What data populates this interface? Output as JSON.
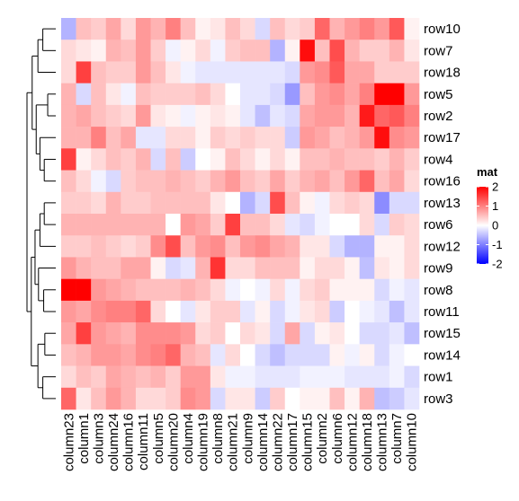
{
  "chart_data": {
    "type": "heatmap",
    "title": "",
    "legend": {
      "title": "mat",
      "placement": "right",
      "breaks": [
        2,
        1,
        0,
        -1,
        -2
      ],
      "break_labels": [
        "2",
        "1",
        "0",
        "-1",
        "-2"
      ],
      "low_color": "#0000ff",
      "mid_color": "#ffffff",
      "high_color": "#ff0000",
      "range": [
        -2,
        2
      ]
    },
    "rows": [
      "row10",
      "row7",
      "row18",
      "row5",
      "row2",
      "row17",
      "row4",
      "row16",
      "row13",
      "row6",
      "row12",
      "row9",
      "row8",
      "row11",
      "row15",
      "row14",
      "row1",
      "row3"
    ],
    "columns": [
      "column23",
      "column1",
      "column3",
      "column24",
      "column16",
      "column11",
      "column5",
      "column20",
      "column4",
      "column19",
      "column8",
      "column21",
      "column9",
      "column14",
      "column22",
      "column17",
      "column15",
      "column2",
      "column6",
      "column12",
      "column18",
      "column13",
      "column7",
      "column10"
    ],
    "values": [
      [
        -0.6,
        0.5,
        0.4,
        0.7,
        0.3,
        0.8,
        0.6,
        1.0,
        0.5,
        0.1,
        0.2,
        0.5,
        0.3,
        -0.3,
        0.5,
        0.3,
        0.4,
        1.2,
        0.6,
        0.8,
        1.0,
        0.8,
        1.3,
        0.1
      ],
      [
        0.3,
        0.2,
        0.1,
        0.6,
        0.5,
        0.8,
        0.4,
        -0.1,
        0.1,
        0.3,
        -0.1,
        0.4,
        0.5,
        0.5,
        -0.6,
        0.1,
        1.9,
        0.5,
        1.4,
        0.6,
        0.4,
        0.4,
        0.6,
        0.2
      ],
      [
        0.3,
        1.5,
        0.5,
        0.4,
        0.4,
        0.8,
        0.5,
        0.2,
        -0.1,
        -0.2,
        -0.2,
        -0.2,
        -0.2,
        -0.2,
        -0.2,
        -0.3,
        0.8,
        0.9,
        1.3,
        0.7,
        0.7,
        0.4,
        0.4,
        0.4
      ],
      [
        0.6,
        -0.3,
        0.5,
        0.2,
        -0.1,
        0.5,
        0.4,
        0.4,
        0.4,
        0.5,
        0.3,
        0.0,
        -0.2,
        -0.2,
        -0.3,
        -0.8,
        0.5,
        0.8,
        0.9,
        0.7,
        1.0,
        2.0,
        2.0,
        0.8
      ],
      [
        0.6,
        0.7,
        0.5,
        0.4,
        0.3,
        0.8,
        0.2,
        0.1,
        -0.1,
        0.1,
        0.2,
        0.1,
        -0.2,
        -0.5,
        -0.2,
        -0.3,
        0.7,
        0.8,
        0.8,
        0.6,
        1.8,
        1.2,
        1.3,
        1.0
      ],
      [
        0.6,
        0.6,
        1.0,
        0.5,
        0.7,
        -0.2,
        -0.2,
        0.3,
        0.3,
        0.1,
        0.4,
        0.3,
        0.4,
        0.3,
        0.3,
        -0.4,
        0.8,
        0.7,
        0.5,
        0.6,
        0.8,
        1.9,
        0.9,
        0.8
      ],
      [
        1.5,
        0.1,
        0.3,
        0.5,
        0.4,
        0.6,
        -0.3,
        0.5,
        -0.4,
        0.0,
        0.1,
        0.5,
        0.3,
        0.1,
        0.3,
        0.1,
        0.5,
        0.5,
        0.6,
        0.5,
        0.5,
        0.4,
        0.6,
        0.4
      ],
      [
        0.5,
        0.3,
        -0.1,
        -0.3,
        0.4,
        0.5,
        0.5,
        0.6,
        0.5,
        0.4,
        0.6,
        0.8,
        0.5,
        0.4,
        0.7,
        0.4,
        0.6,
        0.7,
        0.5,
        0.8,
        1.2,
        0.5,
        0.7,
        0.3
      ],
      [
        0.4,
        0.4,
        0.3,
        0.6,
        0.4,
        0.4,
        0.5,
        0.5,
        0.5,
        0.5,
        0.2,
        0.0,
        -0.6,
        -0.3,
        1.4,
        0.5,
        0.1,
        -0.1,
        0.3,
        0.4,
        0.3,
        -0.9,
        -0.3,
        -0.3
      ],
      [
        0.6,
        0.6,
        0.6,
        0.6,
        0.6,
        0.6,
        0.6,
        0.0,
        0.8,
        0.7,
        0.4,
        1.5,
        0.5,
        0.5,
        0.3,
        -0.2,
        -0.3,
        -0.1,
        0.0,
        0.0,
        0.3,
        -0.3,
        0.4,
        0.3
      ],
      [
        0.4,
        0.4,
        0.5,
        0.4,
        0.3,
        0.4,
        0.9,
        1.4,
        0.5,
        0.8,
        0.9,
        0.5,
        0.8,
        0.9,
        0.7,
        0.6,
        0.2,
        0.2,
        -0.3,
        -0.6,
        -0.6,
        0.1,
        0.1,
        0.3
      ],
      [
        0.8,
        0.6,
        0.5,
        0.5,
        0.7,
        0.7,
        0.1,
        -0.3,
        -0.2,
        0.6,
        1.6,
        0.3,
        0.3,
        0.5,
        0.5,
        0.5,
        0.1,
        0.3,
        0.3,
        0.1,
        -0.5,
        0.2,
        0.1,
        0.3
      ],
      [
        2.0,
        2.0,
        0.8,
        0.7,
        0.6,
        0.5,
        0.5,
        0.5,
        0.6,
        0.5,
        0.3,
        -0.1,
        0.0,
        -0.1,
        0.3,
        -0.1,
        0.3,
        0.4,
        0.1,
        0.1,
        0.1,
        -0.3,
        -0.1,
        -0.2
      ],
      [
        0.8,
        0.7,
        0.9,
        1.0,
        1.0,
        1.2,
        0.3,
        0.0,
        -0.2,
        0.2,
        0.4,
        0.4,
        -0.2,
        0.1,
        -0.3,
        -0.1,
        0.2,
        0.3,
        -0.4,
        0.0,
        -0.1,
        -0.2,
        -0.5,
        -0.2
      ],
      [
        0.7,
        1.5,
        0.8,
        0.7,
        0.6,
        0.9,
        0.9,
        0.9,
        0.8,
        0.3,
        0.4,
        0.0,
        0.3,
        0.2,
        -0.3,
        0.7,
        -0.3,
        0.1,
        0.2,
        0.0,
        -0.3,
        -0.3,
        -0.2,
        -0.5
      ],
      [
        0.5,
        0.6,
        0.8,
        0.8,
        0.7,
        0.9,
        1.0,
        1.2,
        0.6,
        0.5,
        -0.2,
        0.3,
        0.0,
        -0.3,
        -0.5,
        -0.3,
        -0.3,
        -0.3,
        0.1,
        -0.1,
        0.1,
        -0.3,
        -0.1,
        0.0
      ],
      [
        0.3,
        0.5,
        0.4,
        0.7,
        0.6,
        0.5,
        0.6,
        0.4,
        0.8,
        0.8,
        0.2,
        -0.1,
        -0.1,
        -0.2,
        -0.2,
        -0.2,
        -0.1,
        -0.1,
        -0.1,
        -0.2,
        -0.2,
        -0.2,
        -0.1,
        -0.3
      ],
      [
        1.2,
        0.2,
        0.5,
        0.8,
        0.6,
        0.3,
        0.3,
        0.4,
        0.9,
        0.8,
        -0.3,
        0.2,
        0.2,
        -0.4,
        0.4,
        0.0,
        0.1,
        0.1,
        0.5,
        0.1,
        0.6,
        -0.5,
        -0.4,
        -0.2
      ]
    ]
  }
}
